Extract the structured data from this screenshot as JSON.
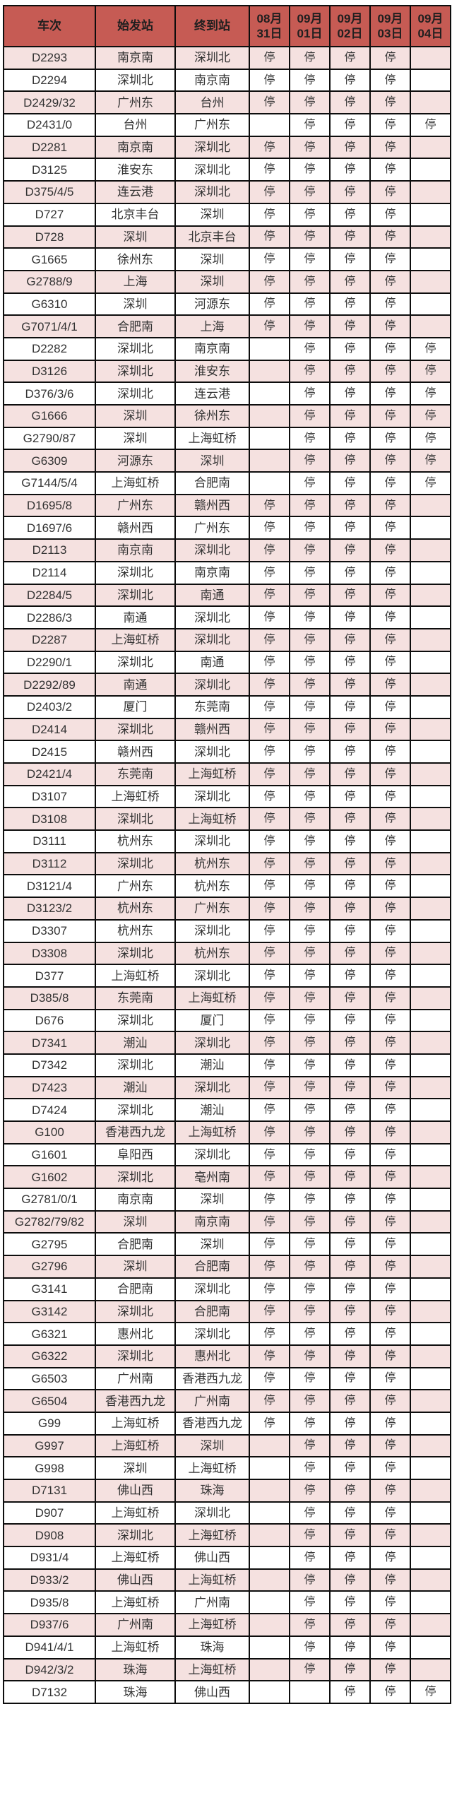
{
  "table": {
    "columns": [
      "车次",
      "始发站",
      "终到站",
      "08月\n31日",
      "09月\n01日",
      "09月\n02日",
      "09月\n03日",
      "09月\n04日"
    ],
    "stop_label": "停",
    "rows": [
      {
        "train": "D2293",
        "from": "南京南",
        "to": "深圳北",
        "stops": [
          "停",
          "停",
          "停",
          "停",
          ""
        ]
      },
      {
        "train": "D2294",
        "from": "深圳北",
        "to": "南京南",
        "stops": [
          "停",
          "停",
          "停",
          "停",
          ""
        ]
      },
      {
        "train": "D2429/32",
        "from": "广州东",
        "to": "台州",
        "stops": [
          "停",
          "停",
          "停",
          "停",
          ""
        ]
      },
      {
        "train": "D2431/0",
        "from": "台州",
        "to": "广州东",
        "stops": [
          "",
          "停",
          "停",
          "停",
          "停"
        ]
      },
      {
        "train": "D2281",
        "from": "南京南",
        "to": "深圳北",
        "stops": [
          "停",
          "停",
          "停",
          "停",
          ""
        ]
      },
      {
        "train": "D3125",
        "from": "淮安东",
        "to": "深圳北",
        "stops": [
          "停",
          "停",
          "停",
          "停",
          ""
        ]
      },
      {
        "train": "D375/4/5",
        "from": "连云港",
        "to": "深圳北",
        "stops": [
          "停",
          "停",
          "停",
          "停",
          ""
        ]
      },
      {
        "train": "D727",
        "from": "北京丰台",
        "to": "深圳",
        "stops": [
          "停",
          "停",
          "停",
          "停",
          ""
        ]
      },
      {
        "train": "D728",
        "from": "深圳",
        "to": "北京丰台",
        "stops": [
          "停",
          "停",
          "停",
          "停",
          ""
        ]
      },
      {
        "train": "G1665",
        "from": "徐州东",
        "to": "深圳",
        "stops": [
          "停",
          "停",
          "停",
          "停",
          ""
        ]
      },
      {
        "train": "G2788/9",
        "from": "上海",
        "to": "深圳",
        "stops": [
          "停",
          "停",
          "停",
          "停",
          ""
        ]
      },
      {
        "train": "G6310",
        "from": "深圳",
        "to": "河源东",
        "stops": [
          "停",
          "停",
          "停",
          "停",
          ""
        ]
      },
      {
        "train": "G7071/4/1",
        "from": "合肥南",
        "to": "上海",
        "stops": [
          "停",
          "停",
          "停",
          "停",
          ""
        ]
      },
      {
        "train": "D2282",
        "from": "深圳北",
        "to": "南京南",
        "stops": [
          "",
          "停",
          "停",
          "停",
          "停"
        ]
      },
      {
        "train": "D3126",
        "from": "深圳北",
        "to": "淮安东",
        "stops": [
          "",
          "停",
          "停",
          "停",
          "停"
        ]
      },
      {
        "train": "D376/3/6",
        "from": "深圳北",
        "to": "连云港",
        "stops": [
          "",
          "停",
          "停",
          "停",
          "停"
        ]
      },
      {
        "train": "G1666",
        "from": "深圳",
        "to": "徐州东",
        "stops": [
          "",
          "停",
          "停",
          "停",
          "停"
        ]
      },
      {
        "train": "G2790/87",
        "from": "深圳",
        "to": "上海虹桥",
        "stops": [
          "",
          "停",
          "停",
          "停",
          "停"
        ]
      },
      {
        "train": "G6309",
        "from": "河源东",
        "to": "深圳",
        "stops": [
          "",
          "停",
          "停",
          "停",
          "停"
        ]
      },
      {
        "train": "G7144/5/4",
        "from": "上海虹桥",
        "to": "合肥南",
        "stops": [
          "",
          "停",
          "停",
          "停",
          "停"
        ]
      },
      {
        "train": "D1695/8",
        "from": "广州东",
        "to": "赣州西",
        "stops": [
          "停",
          "停",
          "停",
          "停",
          ""
        ]
      },
      {
        "train": "D1697/6",
        "from": "赣州西",
        "to": "广州东",
        "stops": [
          "停",
          "停",
          "停",
          "停",
          ""
        ]
      },
      {
        "train": "D2113",
        "from": "南京南",
        "to": "深圳北",
        "stops": [
          "停",
          "停",
          "停",
          "停",
          ""
        ]
      },
      {
        "train": "D2114",
        "from": "深圳北",
        "to": "南京南",
        "stops": [
          "停",
          "停",
          "停",
          "停",
          ""
        ]
      },
      {
        "train": "D2284/5",
        "from": "深圳北",
        "to": "南通",
        "stops": [
          "停",
          "停",
          "停",
          "停",
          ""
        ]
      },
      {
        "train": "D2286/3",
        "from": "南通",
        "to": "深圳北",
        "stops": [
          "停",
          "停",
          "停",
          "停",
          ""
        ]
      },
      {
        "train": "D2287",
        "from": "上海虹桥",
        "to": "深圳北",
        "stops": [
          "停",
          "停",
          "停",
          "停",
          ""
        ]
      },
      {
        "train": "D2290/1",
        "from": "深圳北",
        "to": "南通",
        "stops": [
          "停",
          "停",
          "停",
          "停",
          ""
        ]
      },
      {
        "train": "D2292/89",
        "from": "南通",
        "to": "深圳北",
        "stops": [
          "停",
          "停",
          "停",
          "停",
          ""
        ]
      },
      {
        "train": "D2403/2",
        "from": "厦门",
        "to": "东莞南",
        "stops": [
          "停",
          "停",
          "停",
          "停",
          ""
        ]
      },
      {
        "train": "D2414",
        "from": "深圳北",
        "to": "赣州西",
        "stops": [
          "停",
          "停",
          "停",
          "停",
          ""
        ]
      },
      {
        "train": "D2415",
        "from": "赣州西",
        "to": "深圳北",
        "stops": [
          "停",
          "停",
          "停",
          "停",
          ""
        ]
      },
      {
        "train": "D2421/4",
        "from": "东莞南",
        "to": "上海虹桥",
        "stops": [
          "停",
          "停",
          "停",
          "停",
          ""
        ]
      },
      {
        "train": "D3107",
        "from": "上海虹桥",
        "to": "深圳北",
        "stops": [
          "停",
          "停",
          "停",
          "停",
          ""
        ]
      },
      {
        "train": "D3108",
        "from": "深圳北",
        "to": "上海虹桥",
        "stops": [
          "停",
          "停",
          "停",
          "停",
          ""
        ]
      },
      {
        "train": "D3111",
        "from": "杭州东",
        "to": "深圳北",
        "stops": [
          "停",
          "停",
          "停",
          "停",
          ""
        ]
      },
      {
        "train": "D3112",
        "from": "深圳北",
        "to": "杭州东",
        "stops": [
          "停",
          "停",
          "停",
          "停",
          ""
        ]
      },
      {
        "train": "D3121/4",
        "from": "广州东",
        "to": "杭州东",
        "stops": [
          "停",
          "停",
          "停",
          "停",
          ""
        ]
      },
      {
        "train": "D3123/2",
        "from": "杭州东",
        "to": "广州东",
        "stops": [
          "停",
          "停",
          "停",
          "停",
          ""
        ]
      },
      {
        "train": "D3307",
        "from": "杭州东",
        "to": "深圳北",
        "stops": [
          "停",
          "停",
          "停",
          "停",
          ""
        ]
      },
      {
        "train": "D3308",
        "from": "深圳北",
        "to": "杭州东",
        "stops": [
          "停",
          "停",
          "停",
          "停",
          ""
        ]
      },
      {
        "train": "D377",
        "from": "上海虹桥",
        "to": "深圳北",
        "stops": [
          "停",
          "停",
          "停",
          "停",
          ""
        ]
      },
      {
        "train": "D385/8",
        "from": "东莞南",
        "to": "上海虹桥",
        "stops": [
          "停",
          "停",
          "停",
          "停",
          ""
        ]
      },
      {
        "train": "D676",
        "from": "深圳北",
        "to": "厦门",
        "stops": [
          "停",
          "停",
          "停",
          "停",
          ""
        ]
      },
      {
        "train": "D7341",
        "from": "潮汕",
        "to": "深圳北",
        "stops": [
          "停",
          "停",
          "停",
          "停",
          ""
        ]
      },
      {
        "train": "D7342",
        "from": "深圳北",
        "to": "潮汕",
        "stops": [
          "停",
          "停",
          "停",
          "停",
          ""
        ]
      },
      {
        "train": "D7423",
        "from": "潮汕",
        "to": "深圳北",
        "stops": [
          "停",
          "停",
          "停",
          "停",
          ""
        ]
      },
      {
        "train": "D7424",
        "from": "深圳北",
        "to": "潮汕",
        "stops": [
          "停",
          "停",
          "停",
          "停",
          ""
        ]
      },
      {
        "train": "G100",
        "from": "香港西九龙",
        "to": "上海虹桥",
        "stops": [
          "停",
          "停",
          "停",
          "停",
          ""
        ]
      },
      {
        "train": "G1601",
        "from": "阜阳西",
        "to": "深圳北",
        "stops": [
          "停",
          "停",
          "停",
          "停",
          ""
        ]
      },
      {
        "train": "G1602",
        "from": "深圳北",
        "to": "亳州南",
        "stops": [
          "停",
          "停",
          "停",
          "停",
          ""
        ]
      },
      {
        "train": "G2781/0/1",
        "from": "南京南",
        "to": "深圳",
        "stops": [
          "停",
          "停",
          "停",
          "停",
          ""
        ]
      },
      {
        "train": "G2782/79/82",
        "from": "深圳",
        "to": "南京南",
        "stops": [
          "停",
          "停",
          "停",
          "停",
          ""
        ]
      },
      {
        "train": "G2795",
        "from": "合肥南",
        "to": "深圳",
        "stops": [
          "停",
          "停",
          "停",
          "停",
          ""
        ]
      },
      {
        "train": "G2796",
        "from": "深圳",
        "to": "合肥南",
        "stops": [
          "停",
          "停",
          "停",
          "停",
          ""
        ]
      },
      {
        "train": "G3141",
        "from": "合肥南",
        "to": "深圳北",
        "stops": [
          "停",
          "停",
          "停",
          "停",
          ""
        ]
      },
      {
        "train": "G3142",
        "from": "深圳北",
        "to": "合肥南",
        "stops": [
          "停",
          "停",
          "停",
          "停",
          ""
        ]
      },
      {
        "train": "G6321",
        "from": "惠州北",
        "to": "深圳北",
        "stops": [
          "停",
          "停",
          "停",
          "停",
          ""
        ]
      },
      {
        "train": "G6322",
        "from": "深圳北",
        "to": "惠州北",
        "stops": [
          "停",
          "停",
          "停",
          "停",
          ""
        ]
      },
      {
        "train": "G6503",
        "from": "广州南",
        "to": "香港西九龙",
        "stops": [
          "停",
          "停",
          "停",
          "停",
          ""
        ]
      },
      {
        "train": "G6504",
        "from": "香港西九龙",
        "to": "广州南",
        "stops": [
          "停",
          "停",
          "停",
          "停",
          ""
        ]
      },
      {
        "train": "G99",
        "from": "上海虹桥",
        "to": "香港西九龙",
        "stops": [
          "停",
          "停",
          "停",
          "停",
          ""
        ]
      },
      {
        "train": "G997",
        "from": "上海虹桥",
        "to": "深圳",
        "stops": [
          "",
          "停",
          "停",
          "停",
          ""
        ]
      },
      {
        "train": "G998",
        "from": "深圳",
        "to": "上海虹桥",
        "stops": [
          "",
          "停",
          "停",
          "停",
          ""
        ]
      },
      {
        "train": "D7131",
        "from": "佛山西",
        "to": "珠海",
        "stops": [
          "",
          "停",
          "停",
          "停",
          ""
        ]
      },
      {
        "train": "D907",
        "from": "上海虹桥",
        "to": "深圳北",
        "stops": [
          "",
          "停",
          "停",
          "停",
          ""
        ]
      },
      {
        "train": "D908",
        "from": "深圳北",
        "to": "上海虹桥",
        "stops": [
          "",
          "停",
          "停",
          "停",
          ""
        ]
      },
      {
        "train": "D931/4",
        "from": "上海虹桥",
        "to": "佛山西",
        "stops": [
          "",
          "停",
          "停",
          "停",
          ""
        ]
      },
      {
        "train": "D933/2",
        "from": "佛山西",
        "to": "上海虹桥",
        "stops": [
          "",
          "停",
          "停",
          "停",
          ""
        ]
      },
      {
        "train": "D935/8",
        "from": "上海虹桥",
        "to": "广州南",
        "stops": [
          "",
          "停",
          "停",
          "停",
          ""
        ]
      },
      {
        "train": "D937/6",
        "from": "广州南",
        "to": "上海虹桥",
        "stops": [
          "",
          "停",
          "停",
          "停",
          ""
        ]
      },
      {
        "train": "D941/4/1",
        "from": "上海虹桥",
        "to": "珠海",
        "stops": [
          "",
          "停",
          "停",
          "停",
          ""
        ]
      },
      {
        "train": "D942/3/2",
        "from": "珠海",
        "to": "上海虹桥",
        "stops": [
          "",
          "停",
          "停",
          "停",
          ""
        ]
      },
      {
        "train": "D7132",
        "from": "珠海",
        "to": "佛山西",
        "stops": [
          "",
          "",
          "停",
          "停",
          "停"
        ]
      }
    ]
  },
  "colors": {
    "header_bg": "#c65b54",
    "header_text": "#1f1f1f",
    "alt_row_bg": "#f5e1e0",
    "row_bg": "#ffffff",
    "border": "#0d0d0d",
    "text": "#333333",
    "stop_text": "#3a3a3a"
  }
}
